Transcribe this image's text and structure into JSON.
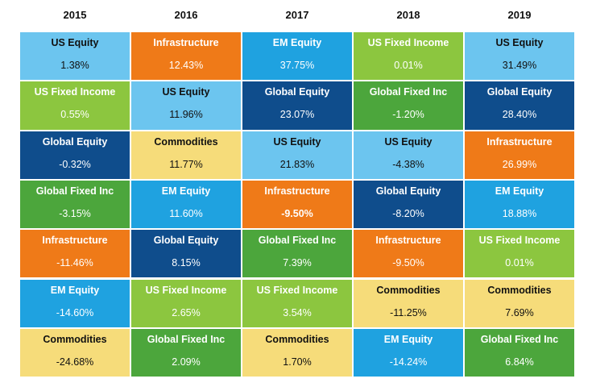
{
  "colors": {
    "US Equity": "#6CC5EF",
    "US Fixed Income": "#8CC63F",
    "Global Equity": "#0F4D8C",
    "Global Fixed Inc": "#4CA63C",
    "Infrastructure": "#EF7A18",
    "EM Equity": "#1FA2E0",
    "Commodities": "#F6DC7A"
  },
  "text_colors": {
    "US Equity": "#111111",
    "US Fixed Income": "#ffffff",
    "Global Equity": "#ffffff",
    "Global Fixed Inc": "#ffffff",
    "Infrastructure": "#ffffff",
    "EM Equity": "#ffffff",
    "Commodities": "#111111"
  },
  "chart_data": {
    "type": "table",
    "years": [
      "2015",
      "2016",
      "2017",
      "2018",
      "2019"
    ],
    "columns": [
      [
        {
          "name": "US Equity",
          "value": "1.38%"
        },
        {
          "name": "US Fixed Income",
          "value": "0.55%"
        },
        {
          "name": "Global Equity",
          "value": "-0.32%"
        },
        {
          "name": "Global Fixed Inc",
          "value": "-3.15%"
        },
        {
          "name": "Infrastructure",
          "value": "-11.46%"
        },
        {
          "name": "EM Equity",
          "value": "-14.60%"
        },
        {
          "name": "Commodities",
          "value": "-24.68%"
        }
      ],
      [
        {
          "name": "Infrastructure",
          "value": "12.43%"
        },
        {
          "name": "US Equity",
          "value": "11.96%"
        },
        {
          "name": "Commodities",
          "value": "11.77%"
        },
        {
          "name": "EM Equity",
          "value": "11.60%"
        },
        {
          "name": "Global Equity",
          "value": "8.15%"
        },
        {
          "name": "US Fixed Income",
          "value": "2.65%"
        },
        {
          "name": "Global Fixed Inc",
          "value": "2.09%"
        }
      ],
      [
        {
          "name": "EM Equity",
          "value": "37.75%"
        },
        {
          "name": "Global Equity",
          "value": "23.07%"
        },
        {
          "name": "US Equity",
          "value": "21.83%"
        },
        {
          "name": "Infrastructure",
          "value": "-9.50%",
          "bold": true
        },
        {
          "name": "Global Fixed Inc",
          "value": "7.39%"
        },
        {
          "name": "US Fixed Income",
          "value": "3.54%"
        },
        {
          "name": "Commodities",
          "value": "1.70%"
        }
      ],
      [
        {
          "name": "US Fixed Income",
          "value": "0.01%"
        },
        {
          "name": "Global Fixed Inc",
          "value": "-1.20%"
        },
        {
          "name": "US Equity",
          "value": "-4.38%"
        },
        {
          "name": "Global Equity",
          "value": "-8.20%"
        },
        {
          "name": "Infrastructure",
          "value": "-9.50%"
        },
        {
          "name": "Commodities",
          "value": "-11.25%"
        },
        {
          "name": "EM Equity",
          "value": "-14.24%"
        }
      ],
      [
        {
          "name": "US Equity",
          "value": "31.49%"
        },
        {
          "name": "Global Equity",
          "value": "28.40%"
        },
        {
          "name": "Infrastructure",
          "value": "26.99%"
        },
        {
          "name": "EM Equity",
          "value": "18.88%"
        },
        {
          "name": "US Fixed Income",
          "value": "0.01%"
        },
        {
          "name": "Commodities",
          "value": "7.69%"
        },
        {
          "name": "Global Fixed Inc",
          "value": "6.84%"
        }
      ]
    ]
  }
}
